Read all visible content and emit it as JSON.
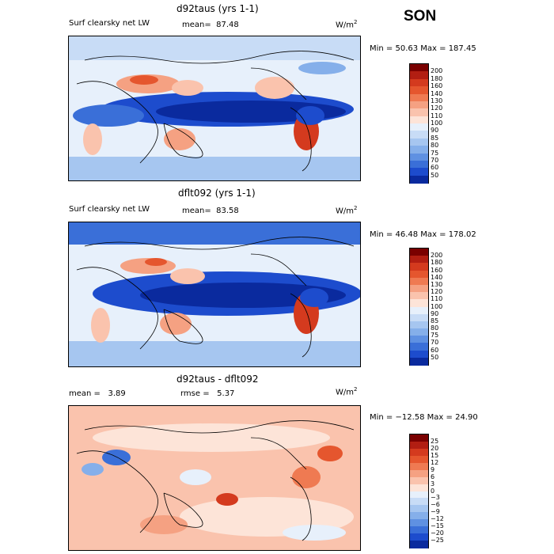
{
  "season": "SON",
  "units_base": "W/m",
  "units_exp": "2",
  "panels": [
    {
      "title": "d92taus (yrs 1-1)",
      "left_label": "Surf clearsky net LW",
      "mid_label": "mean=",
      "mid_value": "87.48",
      "minmax": "Min =  50.63 Max = 187.45",
      "palette": "abs",
      "colorbar": {
        "levels": [
          "200",
          "180",
          "160",
          "140",
          "130",
          "120",
          "110",
          "100",
          "90",
          "85",
          "80",
          "75",
          "70",
          "60",
          "50"
        ],
        "colors": [
          "#7a0000",
          "#b21e12",
          "#d43a1e",
          "#e5562e",
          "#ef7a52",
          "#f5a182",
          "#fac3ad",
          "#fde4d8",
          "#e7f0fb",
          "#c8dcf6",
          "#a6c6f0",
          "#85afea",
          "#5f91e2",
          "#3a6fd8",
          "#1d4ccd",
          "#0a2a9e"
        ]
      }
    },
    {
      "title": "dflt092 (yrs 1-1)",
      "left_label": "Surf clearsky net LW",
      "mid_label": "mean=",
      "mid_value": "83.58",
      "minmax": "Min =  46.48 Max = 178.02",
      "palette": "abs",
      "colorbar": {
        "levels": [
          "200",
          "180",
          "160",
          "140",
          "130",
          "120",
          "110",
          "100",
          "90",
          "85",
          "80",
          "75",
          "70",
          "60",
          "50"
        ],
        "colors": [
          "#7a0000",
          "#b21e12",
          "#d43a1e",
          "#e5562e",
          "#ef7a52",
          "#f5a182",
          "#fac3ad",
          "#fde4d8",
          "#e7f0fb",
          "#c8dcf6",
          "#a6c6f0",
          "#85afea",
          "#5f91e2",
          "#3a6fd8",
          "#1d4ccd",
          "#0a2a9e"
        ]
      }
    },
    {
      "title": "d92taus - dflt092",
      "left_label": "mean =",
      "left_value": "3.89",
      "mid_label": "rmse =",
      "mid_value": "5.37",
      "minmax": "Min = −12.58 Max =  24.90",
      "palette": "diff",
      "colorbar": {
        "levels": [
          "25",
          "20",
          "15",
          "12",
          "9",
          "6",
          "3",
          "0",
          "−3",
          "−6",
          "−9",
          "−12",
          "−15",
          "−20",
          "−25"
        ],
        "colors": [
          "#7a0000",
          "#b21e12",
          "#d43a1e",
          "#e5562e",
          "#ef7a52",
          "#f5a182",
          "#fac3ad",
          "#fde4d8",
          "#e7f0fb",
          "#c8dcf6",
          "#a6c6f0",
          "#85afea",
          "#5f91e2",
          "#3a6fd8",
          "#1d4ccd",
          "#0a2a9e"
        ]
      }
    }
  ]
}
